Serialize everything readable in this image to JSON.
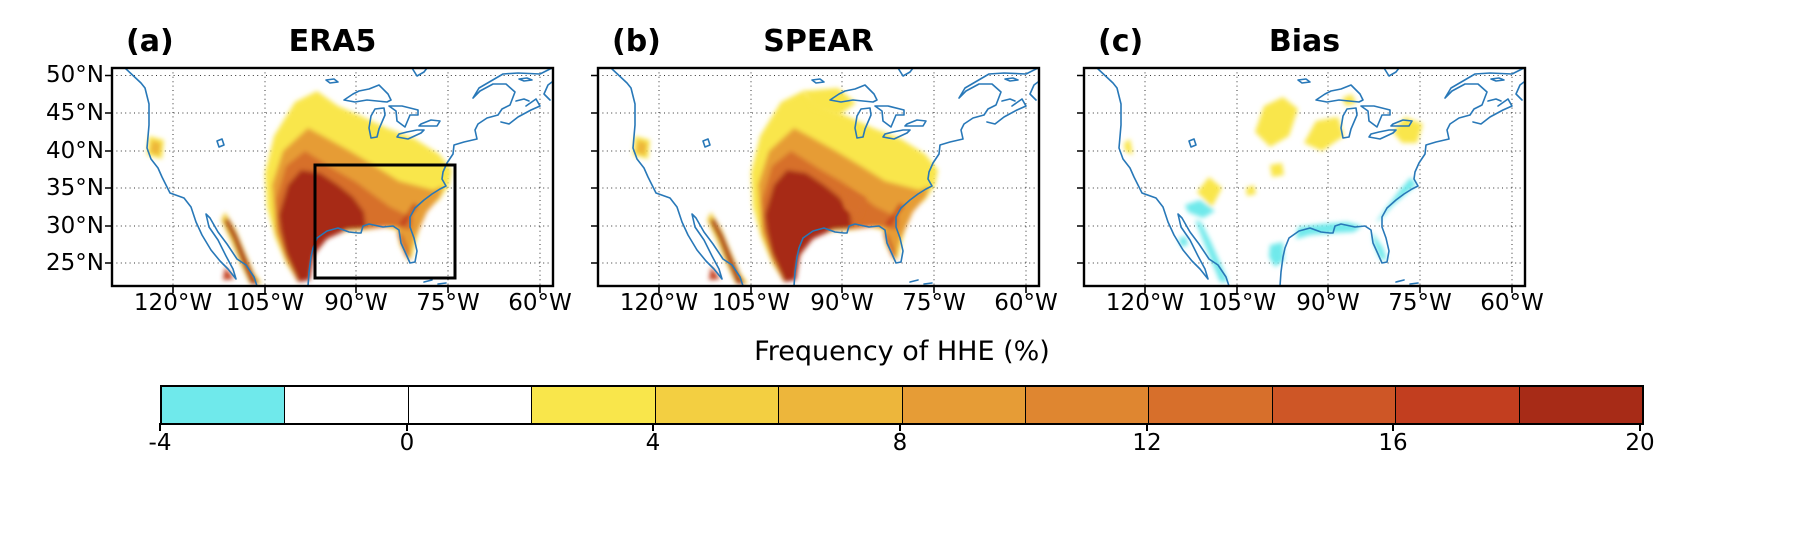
{
  "figure": {
    "background": "#ffffff"
  },
  "panels": [
    {
      "index": "(a)",
      "title": "ERA5"
    },
    {
      "index": "(b)",
      "title": "SPEAR"
    },
    {
      "index": "(c)",
      "title": "Bias"
    }
  ],
  "axes": {
    "x_tick_labels": [
      "120°W",
      "105°W",
      "90°W",
      "75°W",
      "60°W"
    ],
    "y_tick_labels": [
      "50°N",
      "45°N",
      "40°N",
      "35°N",
      "30°N",
      "25°N"
    ]
  },
  "colorbar": {
    "label": "Frequency of HHE (%)",
    "tick_labels": [
      "-4",
      "0",
      "4",
      "8",
      "12",
      "16",
      "20"
    ],
    "value_range": [
      -4,
      20
    ],
    "segment_size": 2,
    "segment_colors": [
      "#6FE9EB",
      "#FFFFFF",
      "#FFFFFF",
      "#F9E64B",
      "#F3CF41",
      "#EDB63B",
      "#E69C36",
      "#DF8630",
      "#D76F2B",
      "#CE5626",
      "#C23E1F",
      "#A72B17"
    ]
  },
  "map_style": {
    "coastline_color": "#2878B8",
    "gridline_style": "dotted black",
    "frame_color": "#000000",
    "study_region_box": {
      "panel": "(a)",
      "lon_range": [
        "97°W",
        "74°W"
      ],
      "lat_range": [
        "23°N",
        "38°N"
      ],
      "color": "#000000"
    }
  },
  "chart_data": [
    {
      "type": "heatmap",
      "panel": "(a)",
      "title": "ERA5",
      "quantity": "Frequency of HHE (%)",
      "x_ticks": [
        "120°W",
        "105°W",
        "90°W",
        "75°W",
        "60°W"
      ],
      "y_ticks": [
        "50°N",
        "45°N",
        "40°N",
        "35°N",
        "30°N",
        "25°N"
      ],
      "approx_extent": {
        "lon": [
          "130°W",
          "58°W"
        ],
        "lat": [
          "22°N",
          "51°N"
        ]
      },
      "regions": [
        {
          "area": "Texas, Gulf Coast, lower Mississippi valley, northeastern Mexico",
          "value": "16-20%"
        },
        {
          "area": "Sierra Madre Occidental strip in northwest Mexico",
          "value": "14-20%"
        },
        {
          "area": "Southeast US, Florida west coast, Atlantic coastal plain",
          "value": "8-16%"
        },
        {
          "area": "Central Plains, Midwest, Ohio valley",
          "value": "4-10%"
        },
        {
          "area": "Upper Midwest and northern Plains fringe",
          "value": "2-4%"
        },
        {
          "area": "Interior northern California (small patch)",
          "value": "2-8%"
        },
        {
          "area": "Western US, Northeast, Canada",
          "value": "~0%"
        }
      ],
      "annotation": "Black rectangle outlining study region approx 97°W-74°W, 23°N-38°N"
    },
    {
      "type": "heatmap",
      "panel": "(b)",
      "title": "SPEAR",
      "quantity": "Frequency of HHE (%)",
      "x_ticks": [
        "120°W",
        "105°W",
        "90°W",
        "75°W",
        "60°W"
      ],
      "y_ticks": [
        "50°N",
        "45°N",
        "40°N",
        "35°N",
        "30°N",
        "25°N"
      ],
      "approx_extent": {
        "lon": [
          "130°W",
          "58°W"
        ],
        "lat": [
          "22°N",
          "51°N"
        ]
      },
      "regions": [
        {
          "area": "Texas, Gulf Coast, lower Mississippi valley, northeastern Mexico",
          "value": "16-20%"
        },
        {
          "area": "Sierra Madre Occidental strip in northwest Mexico",
          "value": "14-20%"
        },
        {
          "area": "Southeast US and Atlantic coastal plain",
          "value": "8-16%"
        },
        {
          "area": "Central Plains and Midwest, slightly broader than ERA5",
          "value": "2-10%"
        }
      ]
    },
    {
      "type": "heatmap",
      "panel": "(c)",
      "title": "Bias",
      "quantity": "Bias in frequency of HHE (%)",
      "x_ticks": [
        "120°W",
        "105°W",
        "90°W",
        "75°W",
        "60°W"
      ],
      "y_ticks": [
        "50°N",
        "45°N",
        "40°N",
        "35°N",
        "30°N",
        "25°N"
      ],
      "approx_extent": {
        "lon": [
          "130°W",
          "58°W"
        ],
        "lat": [
          "22°N",
          "51°N"
        ]
      },
      "regions": [
        {
          "area": "Northern Plains, upper Midwest, Great Lakes, Northeast (scattered patches)",
          "value": "+2 to +6%"
        },
        {
          "area": "Interior West and northern California patches",
          "value": "+2 to +4%"
        },
        {
          "area": "Gulf Coast, Florida, Southeast Atlantic coast, south Texas",
          "value": "-2 to -4%"
        },
        {
          "area": "Northwest Mexico and southern Arizona",
          "value": "-2 to -4%"
        },
        {
          "area": "Rest of domain",
          "value": "~0%"
        }
      ]
    }
  ]
}
